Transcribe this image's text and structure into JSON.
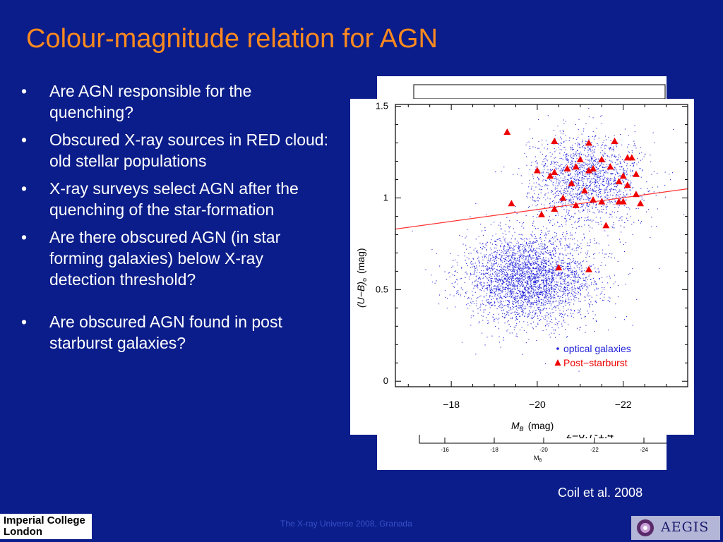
{
  "slide": {
    "title": "Colour-magnitude relation for AGN",
    "bullets": [
      "Are AGN responsible for the quenching?",
      "Obscured X-ray sources in RED cloud: old stellar populations",
      "X-ray surveys select AGN after the quenching of the star-formation",
      "Are there obscured AGN (in star forming galaxies) below X-ray detection threshold?",
      "Are obscured AGN found in post starburst galaxies?"
    ],
    "citation": "Coil et al. 2008",
    "footer": "The X-ray Universe 2008, Granada",
    "logo_left": [
      "Imperial College",
      "London"
    ],
    "logo_right": "AEGIS"
  },
  "colors": {
    "background": "#0b1d8a",
    "title": "#ff8a1e",
    "text": "#ffffff",
    "optical": "#1f1fd8",
    "poststarburst": "#ee0000",
    "fit_line": "#ff3333"
  },
  "back_figure": {
    "xticks": [
      "-16",
      "-18",
      "-20",
      "-22",
      "-24"
    ],
    "xlabel": "M",
    "xlabel_sub": "B",
    "label": "z=0.7-1.4"
  },
  "chart_data": {
    "type": "scatter",
    "title": "",
    "xlabel": "M",
    "xlabel_sub": "B",
    "xlabel_unit": "(mag)",
    "ylabel": "(U−B)",
    "ylabel_sub": "o",
    "ylabel_unit": "(mag)",
    "xlim": [
      -16.7,
      -23.5
    ],
    "ylim": [
      -0.03,
      1.51
    ],
    "xticks": [
      -18,
      -20,
      -22
    ],
    "yticks": [
      0,
      0.5,
      1,
      1.5
    ],
    "ytick_labels": [
      "0",
      "0.5",
      "1",
      "1.5"
    ],
    "xtick_labels": [
      "−18",
      "−20",
      "−22"
    ],
    "legend": [
      "optical galaxies",
      "Post−starburst"
    ],
    "legend_position": "bottom-right",
    "fit_line": {
      "x": [
        -16.7,
        -23.5
      ],
      "y": [
        0.83,
        1.05
      ]
    },
    "series": [
      {
        "name": "optical galaxies",
        "marker": "dot",
        "count": 5000,
        "clouds": [
          {
            "label": "blue cloud",
            "center": [
              -19.8,
              0.56
            ],
            "spread": [
              1.0,
              0.16
            ],
            "fraction": 0.66
          },
          {
            "label": "red sequence",
            "center": [
              -21.1,
              1.1
            ],
            "spread": [
              0.85,
              0.17
            ],
            "fraction": 0.34
          }
        ]
      },
      {
        "name": "Post−starburst",
        "marker": "triangle",
        "x": [
          -19.3,
          -20.4,
          -21.2,
          -20.0,
          -20.4,
          -20.7,
          -21.0,
          -21.2,
          -21.5,
          -21.8,
          -22.1,
          -22.2,
          -20.9,
          -21.3,
          -21.7,
          -22.0,
          -22.3,
          -21.9,
          -20.3,
          -20.8,
          -21.1,
          -20.6,
          -22.1,
          -22.3,
          -19.4,
          -20.1,
          -20.4,
          -20.9,
          -21.3,
          -21.5,
          -21.9,
          -22.0,
          -22.4,
          -21.6,
          -20.5,
          -21.2
        ],
        "y": [
          1.36,
          1.31,
          1.3,
          1.15,
          1.14,
          1.16,
          1.21,
          1.15,
          1.21,
          1.31,
          1.22,
          1.22,
          1.17,
          1.16,
          1.17,
          1.12,
          1.13,
          1.09,
          1.12,
          1.08,
          1.04,
          1.0,
          1.07,
          1.02,
          0.97,
          0.91,
          0.94,
          0.96,
          0.99,
          0.98,
          0.98,
          0.98,
          0.97,
          0.85,
          0.62,
          0.61
        ]
      }
    ]
  }
}
